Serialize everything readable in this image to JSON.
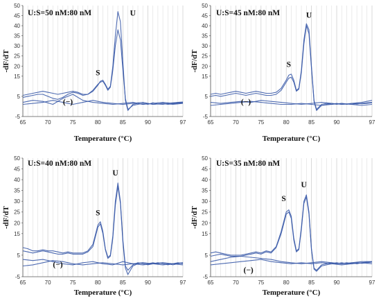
{
  "chart_data": [
    {
      "type": "line",
      "title": "U:S=50 nM:80 nM",
      "xlabel": "Temperature (°C)",
      "ylabel": "-dF/dT",
      "xlim": [
        65,
        97
      ],
      "ylim": [
        -5,
        50
      ],
      "xticks": [
        65,
        70,
        75,
        80,
        85,
        90,
        97
      ],
      "yticks": [
        -5,
        5,
        15,
        20,
        25,
        30,
        35,
        40,
        45,
        50
      ],
      "grid": "vertical",
      "color": "#3a5aa8",
      "annotations": [
        {
          "text": "U",
          "x": 87,
          "y": 45
        },
        {
          "text": "S",
          "x": 80,
          "y": 15.5
        },
        {
          "text": "(−)",
          "x": 74,
          "y": 1
        }
      ],
      "series": [
        {
          "x": [
            65,
            66,
            67,
            68,
            69,
            70,
            71,
            72,
            73,
            74,
            75,
            76,
            77,
            78,
            79,
            80,
            80.5,
            81,
            81.5,
            82,
            82.5,
            83,
            83.5,
            84,
            84.5,
            85,
            85.5,
            86,
            87,
            88,
            89,
            90,
            91,
            92,
            93,
            94,
            95,
            96,
            97
          ],
          "y": [
            5.5,
            6,
            6.5,
            7,
            7.5,
            7,
            6.5,
            6,
            6.5,
            7,
            7.5,
            7,
            6,
            6,
            7.5,
            10.5,
            12.5,
            13,
            11,
            8.5,
            10,
            20,
            35,
            47,
            42,
            22,
            3,
            -2,
            1,
            1.5,
            1,
            1.5,
            1,
            1.2,
            1,
            1.5,
            1.8,
            2,
            2.2
          ]
        },
        {
          "x": [
            65,
            66,
            67,
            68,
            69,
            70,
            71,
            72,
            73,
            74,
            75,
            76,
            77,
            78,
            79,
            80,
            80.5,
            81,
            81.5,
            82,
            82.5,
            83,
            83.5,
            84,
            84.5,
            85,
            85.5,
            86,
            87,
            88,
            89,
            90,
            91,
            92,
            93,
            94,
            95,
            96,
            97
          ],
          "y": [
            4.5,
            5,
            5.5,
            6,
            6,
            5,
            4,
            3.5,
            4.5,
            6,
            7,
            6.5,
            5.5,
            6,
            8,
            11,
            12,
            12.5,
            10.5,
            8,
            9.5,
            18,
            30,
            38,
            33,
            18,
            4,
            -1.5,
            0.5,
            1,
            1.5,
            1,
            1.8,
            1.2,
            1.5,
            1,
            1.3,
            1.6,
            1.8
          ]
        },
        {
          "x": [
            65,
            67,
            69,
            71,
            73,
            75,
            77,
            79,
            81,
            83,
            85,
            87,
            89,
            91,
            93,
            95,
            97
          ],
          "y": [
            2,
            3,
            2.5,
            1,
            4,
            6,
            3,
            2,
            1.5,
            1,
            1.5,
            2,
            1,
            1.5,
            2,
            1.5,
            2
          ]
        },
        {
          "x": [
            65,
            67,
            69,
            71,
            73,
            75,
            77,
            79,
            81,
            83,
            85,
            87,
            89,
            91,
            93,
            95,
            97
          ],
          "y": [
            1,
            1.5,
            2,
            3,
            2,
            1,
            2,
            3,
            2,
            1.5,
            1,
            1.5,
            2,
            1,
            1.5,
            1,
            1.5
          ]
        }
      ]
    },
    {
      "type": "line",
      "title": "U:S=45 nM:80 nM",
      "xlabel": "Temperature (°C)",
      "ylabel": "-dF/dT",
      "xlim": [
        65,
        97
      ],
      "ylim": [
        -5,
        50
      ],
      "xticks": [
        65,
        70,
        75,
        80,
        85,
        90,
        97
      ],
      "yticks": [
        -5,
        5,
        15,
        20,
        25,
        30,
        35,
        40,
        45,
        50
      ],
      "grid": "vertical",
      "color": "#3a5aa8",
      "annotations": [
        {
          "text": "U",
          "x": 84.5,
          "y": 44
        },
        {
          "text": "S",
          "x": 80.5,
          "y": 19.5
        },
        {
          "text": "(−)",
          "x": 72,
          "y": 1
        }
      ],
      "series": [
        {
          "x": [
            65,
            66,
            67,
            68,
            69,
            70,
            71,
            72,
            73,
            74,
            75,
            76,
            77,
            78,
            79,
            80,
            80.5,
            81,
            81.5,
            82,
            82.5,
            83,
            83.5,
            84,
            84.5,
            85,
            85.5,
            86,
            87,
            88,
            89,
            90,
            91,
            92,
            93,
            94,
            95,
            96,
            97
          ],
          "y": [
            6,
            6.5,
            6,
            6.5,
            7,
            7.5,
            7,
            6.5,
            7,
            7.5,
            7,
            6.5,
            6.5,
            7,
            9,
            13,
            15.5,
            16,
            13,
            8,
            9,
            18,
            33,
            41,
            38,
            20,
            3,
            -1.5,
            1,
            1.5,
            1,
            1.5,
            1,
            1.2,
            1,
            1.5,
            1.3,
            1.5,
            1.8
          ]
        },
        {
          "x": [
            65,
            66,
            67,
            68,
            69,
            70,
            71,
            72,
            73,
            74,
            75,
            76,
            77,
            78,
            79,
            80,
            80.5,
            81,
            81.5,
            82,
            82.5,
            83,
            83.5,
            84,
            84.5,
            85,
            85.5,
            86,
            87,
            88,
            89,
            90,
            91,
            92,
            93,
            94,
            95,
            96,
            97
          ],
          "y": [
            5,
            5.5,
            5,
            5.5,
            6,
            6.5,
            6,
            5.5,
            6,
            6.5,
            6,
            5.5,
            5.5,
            6,
            8,
            12,
            14,
            14.5,
            12,
            7.5,
            8.5,
            17,
            31,
            40,
            36,
            19,
            2.5,
            -2,
            0.5,
            1,
            1.5,
            1,
            1.5,
            1,
            1.5,
            1.2,
            1.5,
            1.8,
            2
          ]
        },
        {
          "x": [
            65,
            67,
            69,
            71,
            73,
            75,
            77,
            79,
            81,
            83,
            85,
            87,
            89,
            91,
            93,
            95,
            97
          ],
          "y": [
            2,
            1.5,
            2,
            2.5,
            2,
            3,
            2.5,
            2,
            1.5,
            1,
            1.5,
            2,
            1.5,
            1,
            1.5,
            2,
            3
          ]
        },
        {
          "x": [
            65,
            67,
            69,
            71,
            73,
            75,
            77,
            79,
            81,
            83,
            85,
            87,
            89,
            91,
            93,
            95,
            97
          ],
          "y": [
            0.5,
            1,
            1.5,
            2,
            2.5,
            2,
            1.5,
            1,
            1,
            1.5,
            1,
            0.5,
            1,
            1.5,
            1,
            0.5,
            1
          ]
        }
      ]
    },
    {
      "type": "line",
      "title": "U:S=40 nM:80 nM",
      "xlabel": "Temperature (°C)",
      "ylabel": "-dF/dT",
      "xlim": [
        65,
        97
      ],
      "ylim": [
        -5,
        50
      ],
      "xticks": [
        65,
        70,
        75,
        80,
        85,
        90,
        97
      ],
      "yticks": [
        -5,
        5,
        15,
        20,
        25,
        30,
        35,
        40,
        45,
        50
      ],
      "grid": "vertical",
      "color": "#3a5aa8",
      "annotations": [
        {
          "text": "U",
          "x": 83.5,
          "y": 42
        },
        {
          "text": "S",
          "x": 80,
          "y": 23.5
        },
        {
          "text": "(−)",
          "x": 72,
          "y": -0.5
        }
      ],
      "series": [
        {
          "x": [
            65,
            66,
            67,
            68,
            69,
            70,
            71,
            72,
            73,
            74,
            75,
            76,
            77,
            78,
            79,
            80,
            80.5,
            81,
            81.5,
            82,
            82.5,
            83,
            83.5,
            84,
            84.5,
            85,
            85.5,
            86,
            87,
            88,
            89,
            90,
            91,
            92,
            93,
            94,
            95,
            96,
            97
          ],
          "y": [
            8.5,
            8,
            7,
            7,
            7.5,
            7,
            7,
            6.5,
            6,
            6.5,
            6,
            6,
            6,
            7,
            10,
            19,
            20.5,
            16,
            8,
            4,
            5,
            14,
            30,
            38.5,
            30,
            12,
            0,
            -2,
            0.5,
            1.5,
            1,
            0.5,
            1,
            1.5,
            1,
            0.5,
            1,
            1.5,
            1
          ]
        },
        {
          "x": [
            65,
            66,
            67,
            68,
            69,
            70,
            71,
            72,
            73,
            74,
            75,
            76,
            77,
            78,
            79,
            80,
            80.5,
            81,
            81.5,
            82,
            82.5,
            83,
            83.5,
            84,
            84.5,
            85,
            85.5,
            86,
            87,
            88,
            89,
            90,
            91,
            92,
            93,
            94,
            95,
            96,
            97
          ],
          "y": [
            7,
            6.5,
            6,
            6.5,
            7,
            6.5,
            6,
            5.5,
            5.5,
            6,
            5.5,
            5.5,
            5.5,
            6.5,
            9,
            18,
            19.5,
            15,
            7.5,
            3.5,
            4.5,
            13,
            28,
            37,
            29,
            11,
            -1,
            -4,
            0,
            1,
            1.5,
            1,
            1.5,
            1,
            1.5,
            1,
            0.5,
            1,
            1.5
          ]
        },
        {
          "x": [
            65,
            67,
            69,
            71,
            73,
            75,
            77,
            79,
            81,
            83,
            85,
            87,
            89,
            91,
            93,
            95,
            97
          ],
          "y": [
            3,
            2.5,
            3,
            2,
            1,
            0.5,
            1.5,
            2,
            1,
            0.5,
            2,
            1,
            1.5,
            1,
            0.5,
            1,
            0.5
          ]
        },
        {
          "x": [
            65,
            67,
            69,
            71,
            73,
            75,
            77,
            79,
            81,
            83,
            85,
            87,
            89,
            91,
            93,
            95,
            97
          ],
          "y": [
            0,
            0.5,
            1.5,
            2.5,
            2,
            1,
            0.5,
            1,
            1.5,
            1,
            0.5,
            1,
            0.5,
            1,
            1.5,
            1,
            1.5
          ]
        }
      ]
    },
    {
      "type": "line",
      "title": "U:S=35 nM:80 nM",
      "xlabel": "Temperature (°C)",
      "ylabel": "-dF/dT",
      "xlim": [
        65,
        97
      ],
      "ylim": [
        -5,
        50
      ],
      "xticks": [
        65,
        70,
        75,
        80,
        85,
        90,
        97
      ],
      "yticks": [
        -5,
        5,
        15,
        20,
        25,
        30,
        35,
        40,
        45,
        50
      ],
      "grid": "vertical",
      "color": "#3a5aa8",
      "annotations": [
        {
          "text": "U",
          "x": 83.5,
          "y": 36.5
        },
        {
          "text": "S",
          "x": 79.5,
          "y": 30
        },
        {
          "text": "(−)",
          "x": 72.5,
          "y": -3
        }
      ],
      "series": [
        {
          "x": [
            65,
            66,
            67,
            68,
            69,
            70,
            71,
            72,
            73,
            74,
            75,
            76,
            77,
            78,
            79,
            80,
            80.5,
            81,
            81.5,
            82,
            82.5,
            83,
            83.5,
            84,
            84.5,
            85,
            85.5,
            86,
            87,
            88,
            89,
            90,
            91,
            92,
            93,
            94,
            95,
            96,
            97
          ],
          "y": [
            6,
            6.5,
            6,
            5.5,
            5,
            5,
            5,
            5.5,
            6,
            6.5,
            6,
            7,
            6.5,
            9,
            16,
            25,
            26,
            23,
            13,
            7,
            8,
            18,
            30,
            33,
            25,
            8,
            -1,
            -2,
            0.5,
            1,
            1.5,
            1,
            1.5,
            1,
            1.5,
            1,
            1.5,
            1.8,
            2
          ]
        },
        {
          "x": [
            65,
            66,
            67,
            68,
            69,
            70,
            71,
            72,
            73,
            74,
            75,
            76,
            77,
            78,
            79,
            80,
            80.5,
            81,
            81.5,
            82,
            82.5,
            83,
            83.5,
            84,
            84.5,
            85,
            85.5,
            86,
            87,
            88,
            89,
            90,
            91,
            92,
            93,
            94,
            95,
            96,
            97
          ],
          "y": [
            4.5,
            5,
            5.5,
            5,
            4.5,
            4.5,
            4.5,
            5,
            5.5,
            6,
            5.5,
            6.5,
            6,
            8.5,
            15,
            24,
            25,
            22,
            12,
            6.5,
            7.5,
            17,
            29,
            32,
            24,
            7.5,
            -1.5,
            -2.5,
            0,
            0.5,
            1,
            1.5,
            1,
            1.5,
            1,
            1.5,
            1.2,
            1.5,
            1.8
          ]
        },
        {
          "x": [
            65,
            67,
            69,
            71,
            73,
            75,
            77,
            79,
            81,
            83,
            85,
            87,
            89,
            91,
            93,
            95,
            97
          ],
          "y": [
            2,
            3,
            4,
            4.5,
            4,
            3.5,
            3,
            2,
            1.5,
            1,
            1.5,
            2,
            1.5,
            1,
            1.5,
            2,
            2
          ]
        },
        {
          "x": [
            65,
            67,
            69,
            71,
            73,
            75,
            77,
            79,
            81,
            83,
            85,
            87,
            89,
            91,
            93,
            95,
            97
          ],
          "y": [
            0.5,
            1,
            1.5,
            2,
            2.5,
            3,
            2,
            1.5,
            1,
            1.5,
            1,
            1.5,
            1,
            0.5,
            1,
            1.5,
            1
          ]
        }
      ]
    }
  ]
}
